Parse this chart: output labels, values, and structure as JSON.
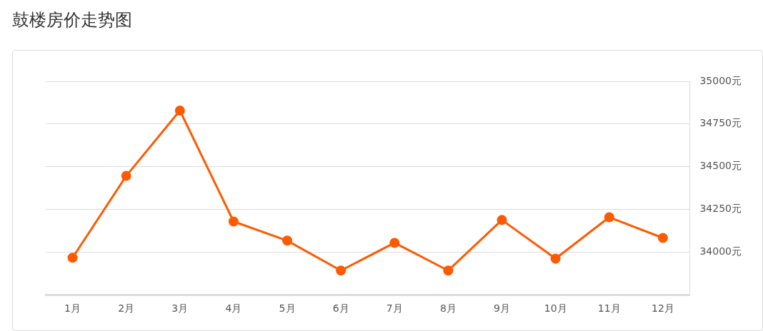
{
  "chart_data": {
    "type": "line",
    "title": "鼓楼房价走势图",
    "categories": [
      "1月",
      "2月",
      "3月",
      "4月",
      "5月",
      "6月",
      "7月",
      "8月",
      "9月",
      "10月",
      "11月",
      "12月"
    ],
    "series": [
      {
        "color": "#ff5a00",
        "values": [
          33967,
          34446,
          34829,
          34179,
          34067,
          33892,
          34054,
          33892,
          34188,
          33962,
          34204,
          34083
        ]
      }
    ],
    "ylim": [
      33750,
      35000
    ],
    "yticks": [
      {
        "value": 34000,
        "label": "34000元"
      },
      {
        "value": 34250,
        "label": "34250元"
      },
      {
        "value": 34500,
        "label": "34500元"
      },
      {
        "value": 34750,
        "label": "34750元"
      },
      {
        "value": 35000,
        "label": "35000元"
      }
    ],
    "grid": "y",
    "legend": false,
    "marker": "circle",
    "line_style": "solid"
  }
}
